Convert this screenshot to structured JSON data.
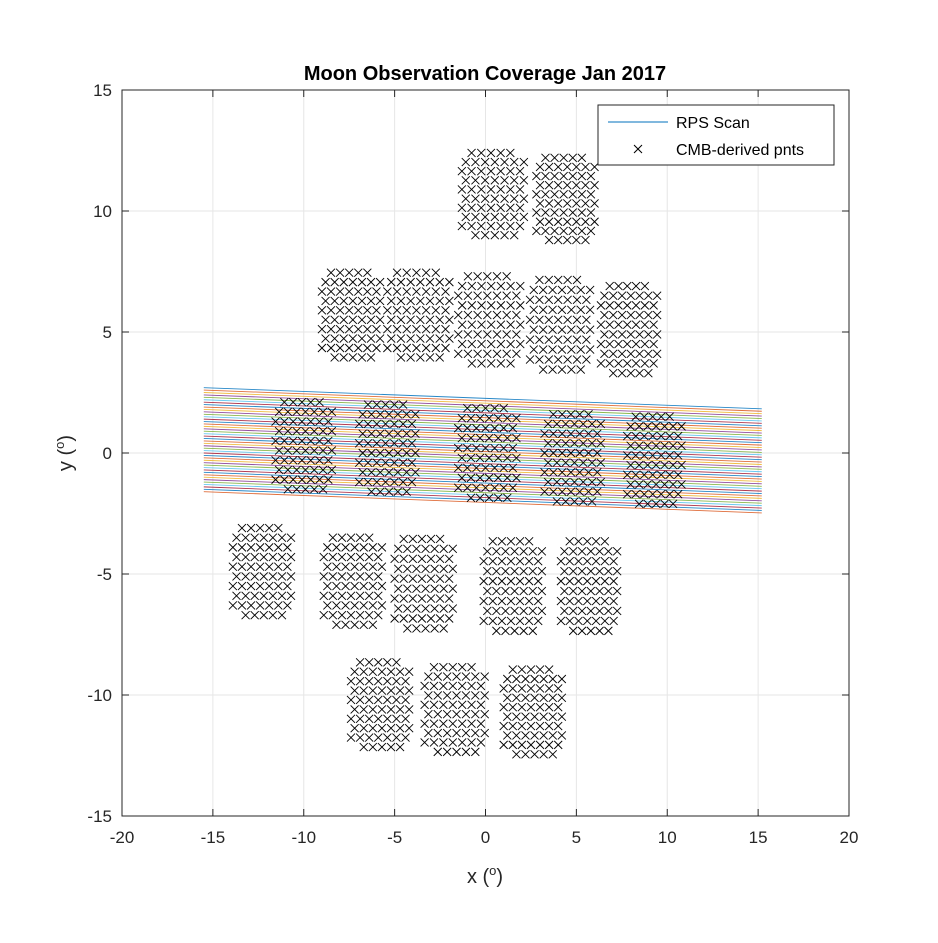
{
  "chart_data": {
    "type": "line",
    "title": "Moon Observation Coverage Jan 2017",
    "xlabel": "x (",
    "xlabel_sup": "o",
    "xlabel_end": ")",
    "ylabel": "y (",
    "ylabel_sup": "o",
    "ylabel_end": ")",
    "xlim": [
      -20,
      20
    ],
    "ylim": [
      -15,
      15
    ],
    "xticks": [
      -20,
      -15,
      -10,
      -5,
      0,
      5,
      10,
      15,
      20
    ],
    "yticks": [
      -15,
      -10,
      -5,
      0,
      5,
      10,
      15
    ],
    "xtick_labels": [
      "-20",
      "-15",
      "-10",
      "-5",
      "0",
      "5",
      "10",
      "15",
      "20"
    ],
    "ytick_labels": [
      "-15",
      "-10",
      "-5",
      "0",
      "5",
      "10",
      "15"
    ],
    "grid": true,
    "legend_position": "top-right",
    "legend": [
      {
        "label": "RPS Scan",
        "marker": "line",
        "color": "#0072BD"
      },
      {
        "label": "CMB-derived pnts",
        "marker": "x",
        "color": "#000000"
      }
    ],
    "scan": {
      "x_range": [
        -15.5,
        15.2
      ],
      "left_y_top": 2.7,
      "left_y_bottom": -1.6,
      "slope_per_degree": -0.0285,
      "line_count": 44,
      "colors": [
        "#0072BD",
        "#D95319",
        "#EDB120",
        "#7E2F8E",
        "#77AC30",
        "#4DBEEE",
        "#A2142F"
      ]
    },
    "cmb_clusters": [
      {
        "x": 0.3,
        "y": 10.7,
        "width": 3.2,
        "height": 3.4
      },
      {
        "x": 4.3,
        "y": 10.5,
        "width": 3.0,
        "height": 3.4
      },
      {
        "x": -7.5,
        "y": 5.7,
        "width": 3.0,
        "height": 3.5
      },
      {
        "x": -3.8,
        "y": 5.7,
        "width": 3.2,
        "height": 3.5
      },
      {
        "x": 0.1,
        "y": 5.5,
        "width": 3.2,
        "height": 3.6
      },
      {
        "x": 4.0,
        "y": 5.3,
        "width": 3.1,
        "height": 3.7
      },
      {
        "x": 7.8,
        "y": 5.1,
        "width": 2.9,
        "height": 3.6
      },
      {
        "x": -10.1,
        "y": 0.3,
        "width": 2.9,
        "height": 3.6
      },
      {
        "x": -5.5,
        "y": 0.2,
        "width": 2.9,
        "height": 3.6
      },
      {
        "x": 0.0,
        "y": 0.0,
        "width": 3.0,
        "height": 3.7
      },
      {
        "x": 4.7,
        "y": -0.2,
        "width": 2.9,
        "height": 3.6
      },
      {
        "x": 9.2,
        "y": -0.3,
        "width": 2.8,
        "height": 3.6
      },
      {
        "x": -12.4,
        "y": -4.9,
        "width": 3.0,
        "height": 3.6
      },
      {
        "x": -7.4,
        "y": -5.3,
        "width": 3.0,
        "height": 3.6
      },
      {
        "x": -3.5,
        "y": -5.4,
        "width": 3.0,
        "height": 3.7
      },
      {
        "x": 1.4,
        "y": -5.5,
        "width": 3.0,
        "height": 3.7
      },
      {
        "x": 5.6,
        "y": -5.5,
        "width": 2.9,
        "height": 3.7
      },
      {
        "x": -5.9,
        "y": -10.4,
        "width": 3.0,
        "height": 3.5
      },
      {
        "x": -1.8,
        "y": -10.6,
        "width": 3.1,
        "height": 3.5
      },
      {
        "x": 2.5,
        "y": -10.7,
        "width": 3.0,
        "height": 3.5
      }
    ],
    "marker_rows": 10,
    "marker_cols": 7
  }
}
